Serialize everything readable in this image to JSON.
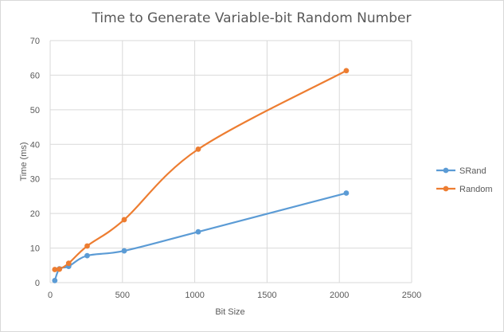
{
  "chart_data": {
    "type": "line",
    "title": "Time to Generate Variable-bit Random Number",
    "xlabel": "Bit Size",
    "ylabel": "Time (ms)",
    "xlim": [
      0,
      2500
    ],
    "ylim": [
      0,
      70
    ],
    "xticks": [
      "0",
      "500",
      "1000",
      "1500",
      "2000",
      "2500"
    ],
    "yticks": [
      "0",
      "10",
      "20",
      "30",
      "40",
      "50",
      "60",
      "70"
    ],
    "grid": true,
    "legend": "right",
    "series": [
      {
        "name": "SRand",
        "color": "#5b9bd5",
        "x": [
          32,
          64,
          128,
          256,
          512,
          1024,
          2048
        ],
        "y": [
          0.6,
          4.0,
          4.7,
          7.8,
          9.2,
          14.7,
          25.9
        ]
      },
      {
        "name": "Random",
        "color": "#ed7d31",
        "x": [
          32,
          64,
          128,
          256,
          512,
          1024,
          2048
        ],
        "y": [
          3.8,
          3.9,
          5.6,
          10.6,
          18.2,
          38.6,
          61.3
        ]
      }
    ]
  }
}
